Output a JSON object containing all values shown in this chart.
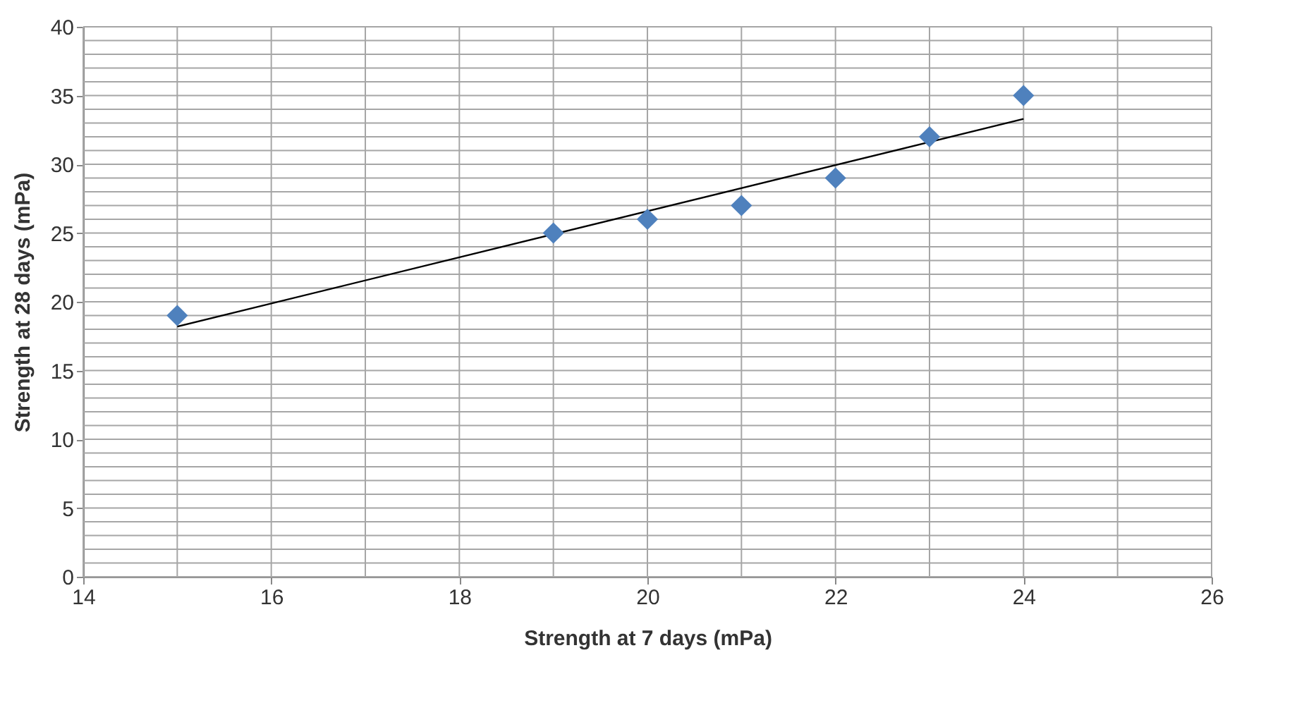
{
  "chart_data": {
    "type": "scatter",
    "xlabel": "Strength at 7 days (mPa)",
    "ylabel": "Strength at 28 days (mPa)",
    "xlim": [
      14,
      26
    ],
    "ylim": [
      0,
      40
    ],
    "xticks": [
      14,
      {
        "value": 15,
        "label": null
      },
      16,
      {
        "value": 17,
        "label": null
      },
      18,
      {
        "value": 19,
        "label": null
      },
      20,
      {
        "value": 21,
        "label": null
      },
      22,
      {
        "value": 23,
        "label": null
      },
      24,
      {
        "value": 25,
        "label": null
      },
      26
    ],
    "yticks": [
      0,
      {
        "value": 1,
        "label": null
      },
      {
        "value": 2,
        "label": null
      },
      {
        "value": 3,
        "label": null
      },
      {
        "value": 4,
        "label": null
      },
      5,
      {
        "value": 6,
        "label": null
      },
      {
        "value": 7,
        "label": null
      },
      {
        "value": 8,
        "label": null
      },
      {
        "value": 9,
        "label": null
      },
      10,
      {
        "value": 11,
        "label": null
      },
      {
        "value": 12,
        "label": null
      },
      {
        "value": 13,
        "label": null
      },
      {
        "value": 14,
        "label": null
      },
      15,
      {
        "value": 16,
        "label": null
      },
      {
        "value": 17,
        "label": null
      },
      {
        "value": 18,
        "label": null
      },
      {
        "value": 19,
        "label": null
      },
      20,
      {
        "value": 21,
        "label": null
      },
      {
        "value": 22,
        "label": null
      },
      {
        "value": 23,
        "label": null
      },
      {
        "value": 24,
        "label": null
      },
      25,
      {
        "value": 26,
        "label": null
      },
      {
        "value": 27,
        "label": null
      },
      {
        "value": 28,
        "label": null
      },
      {
        "value": 29,
        "label": null
      },
      30,
      {
        "value": 31,
        "label": null
      },
      {
        "value": 32,
        "label": null
      },
      {
        "value": 33,
        "label": null
      },
      {
        "value": 34,
        "label": null
      },
      35,
      {
        "value": 36,
        "label": null
      },
      {
        "value": 37,
        "label": null
      },
      {
        "value": 38,
        "label": null
      },
      {
        "value": 39,
        "label": null
      },
      40
    ],
    "grid": true,
    "marker": "diamond",
    "series": [
      {
        "type": "scatter",
        "color": "#4f81bd",
        "x": [
          15,
          19,
          20,
          21,
          22,
          23,
          24
        ],
        "values": [
          19,
          25,
          26,
          27,
          29,
          32,
          35
        ]
      },
      {
        "type": "line",
        "marker": "none",
        "color": "#000000",
        "x": [
          15,
          24
        ],
        "values": [
          18.2,
          33.3
        ]
      }
    ]
  }
}
